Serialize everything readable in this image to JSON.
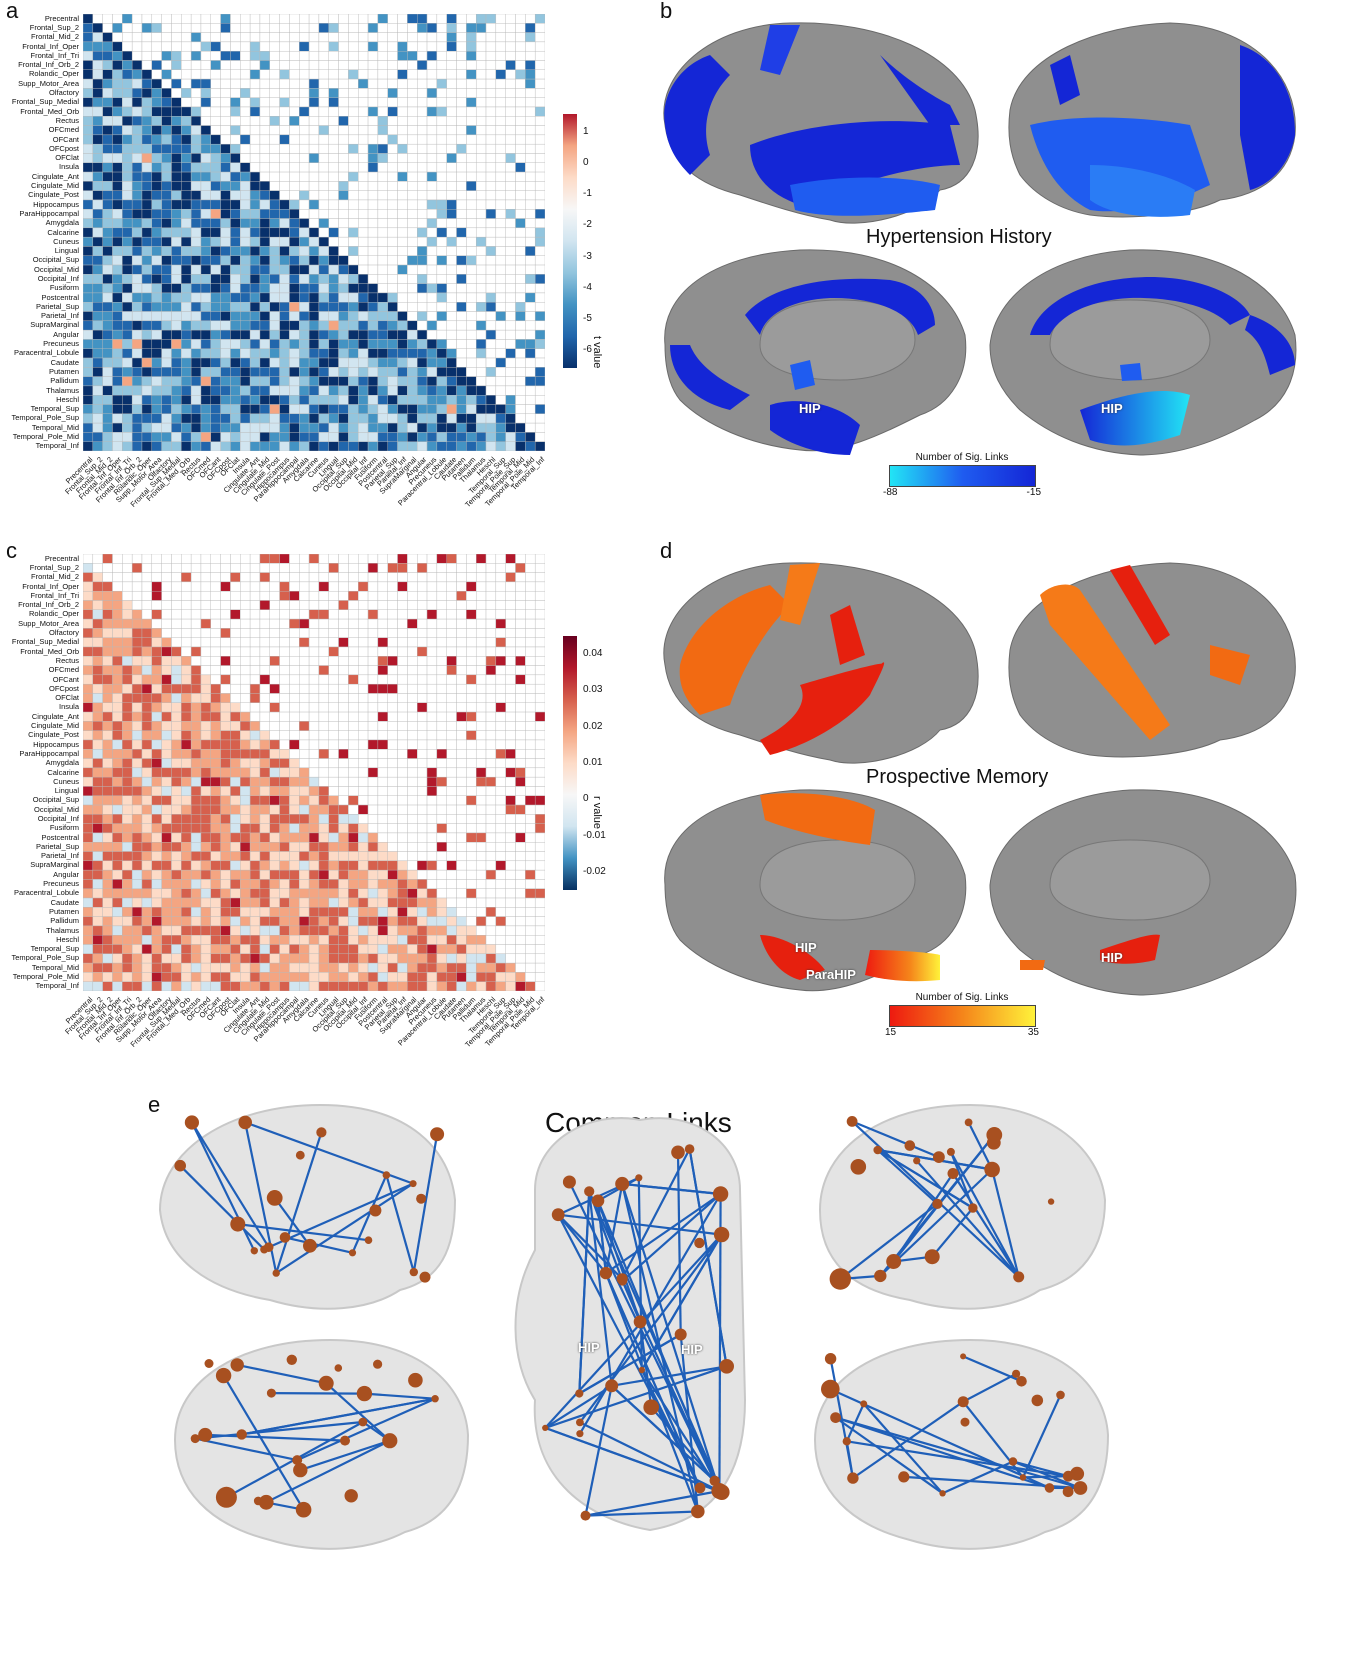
{
  "panels": {
    "a": "a",
    "b": "b",
    "c": "c",
    "d": "d",
    "e": "e"
  },
  "regions": [
    "Precentral",
    "Frontal_Sup_2",
    "Frontal_Mid_2",
    "Frontal_Inf_Oper",
    "Frontal_Inf_Tri",
    "Frontal_Inf_Orb_2",
    "Rolandic_Oper",
    "Supp_Motor_Area",
    "Olfactory",
    "Frontal_Sup_Medial",
    "Frontal_Med_Orb",
    "Rectus",
    "OFCmed",
    "OFCant",
    "OFCpost",
    "OFClat",
    "Insula",
    "Cingulate_Ant",
    "Cingulate_Mid",
    "Cingulate_Post",
    "Hippocampus",
    "ParaHippocampal",
    "Amygdala",
    "Calcarine",
    "Cuneus",
    "Lingual",
    "Occipital_Sup",
    "Occipital_Mid",
    "Occipital_Inf",
    "Fusiform",
    "Postcentral",
    "Parietal_Sup",
    "Parietal_Inf",
    "SupraMarginal",
    "Angular",
    "Precuneus",
    "Paracentral_Lobule",
    "Caudate",
    "Putamen",
    "Pallidum",
    "Thalamus",
    "Heschl",
    "Temporal_Sup",
    "Temporal_Pole_Sup",
    "Temporal_Mid",
    "Temporal_Pole_Mid",
    "Temporal_Inf"
  ],
  "panel_a": {
    "colorbar_title": "t value",
    "colorbar_ticks": [
      "1",
      "0",
      "-1",
      "-2",
      "-3",
      "-4",
      "-5",
      "-6"
    ],
    "colors": [
      "#08306b",
      "#2166ac",
      "#4393c3",
      "#92c5de",
      "#d1e5f0",
      "#f7f7f7",
      "#fddbc7",
      "#f4a582",
      "#b2182b"
    ]
  },
  "panel_c": {
    "colorbar_title": "r value",
    "colorbar_ticks": [
      "0.04",
      "0.03",
      "0.02",
      "0.01",
      "0",
      "-0.01",
      "-0.02"
    ],
    "colors": [
      "#053061",
      "#4393c3",
      "#d1e5f0",
      "#f7f7f7",
      "#fddbc7",
      "#f4a582",
      "#d6604d",
      "#b2182b",
      "#67001f"
    ]
  },
  "panel_b": {
    "title": "Hypertension History",
    "labels": {
      "hip_left": "HIP",
      "hip_right": "HIP"
    },
    "legend_title": "Number of Sig. Links",
    "legend_min": "-88",
    "legend_max": "-15",
    "legend_colors": [
      "#22e5f5",
      "#1f5cf0",
      "#1426d6"
    ]
  },
  "panel_d": {
    "title": "Prospective Memory",
    "labels": {
      "hip_left": "HIP",
      "parahip": "ParaHIP",
      "hip_right": "HIP"
    },
    "legend_title": "Number of Sig. Links",
    "legend_min": "15",
    "legend_max": "35",
    "legend_colors": [
      "#ee1a10",
      "#f5851a",
      "#fff23a"
    ]
  },
  "panel_e": {
    "title": "Common Links",
    "labels": {
      "hip_left": "HIP",
      "hip_right": "HIP"
    },
    "node_color": "#a85020",
    "edge_color": "#1f5fb8"
  }
}
